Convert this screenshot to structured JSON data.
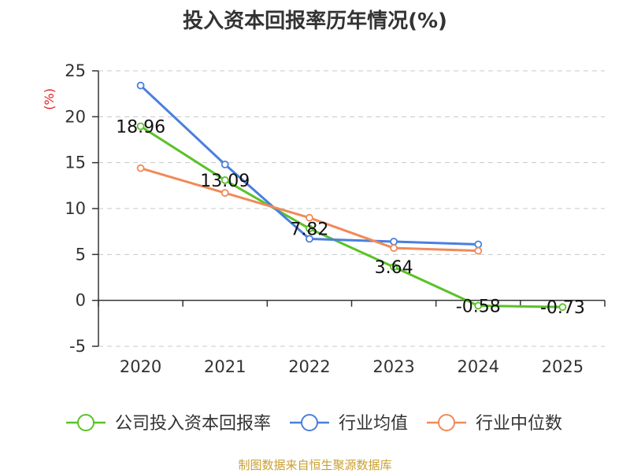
{
  "title": "投入资本回报率历年情况(%)",
  "footer": "制图数据来自恒生聚源数据库",
  "chart_data": {
    "type": "line",
    "title": "投入资本回报率历年情况(%)",
    "ylabel": "(%)",
    "categories": [
      "2020",
      "2021",
      "2022",
      "2023",
      "2024",
      "2025"
    ],
    "ylim": [
      -5,
      25
    ],
    "yticks": [
      -5,
      0,
      5,
      10,
      15,
      20,
      25
    ],
    "grid": true,
    "legend_position": "bottom",
    "series": [
      {
        "name": "公司投入资本回报率",
        "color": "#5ac227",
        "values": [
          18.96,
          13.09,
          7.82,
          3.64,
          -0.58,
          -0.73
        ],
        "labels": [
          "18.96",
          "13.09",
          "7.82",
          "3.64",
          "-0.58",
          "-0.73"
        ]
      },
      {
        "name": "行业均值",
        "color": "#4a7fde",
        "values": [
          23.4,
          14.8,
          6.7,
          6.4,
          6.1,
          null
        ]
      },
      {
        "name": "行业中位数",
        "color": "#f08a58",
        "values": [
          14.4,
          11.7,
          9.0,
          5.7,
          5.4,
          null
        ]
      }
    ]
  }
}
